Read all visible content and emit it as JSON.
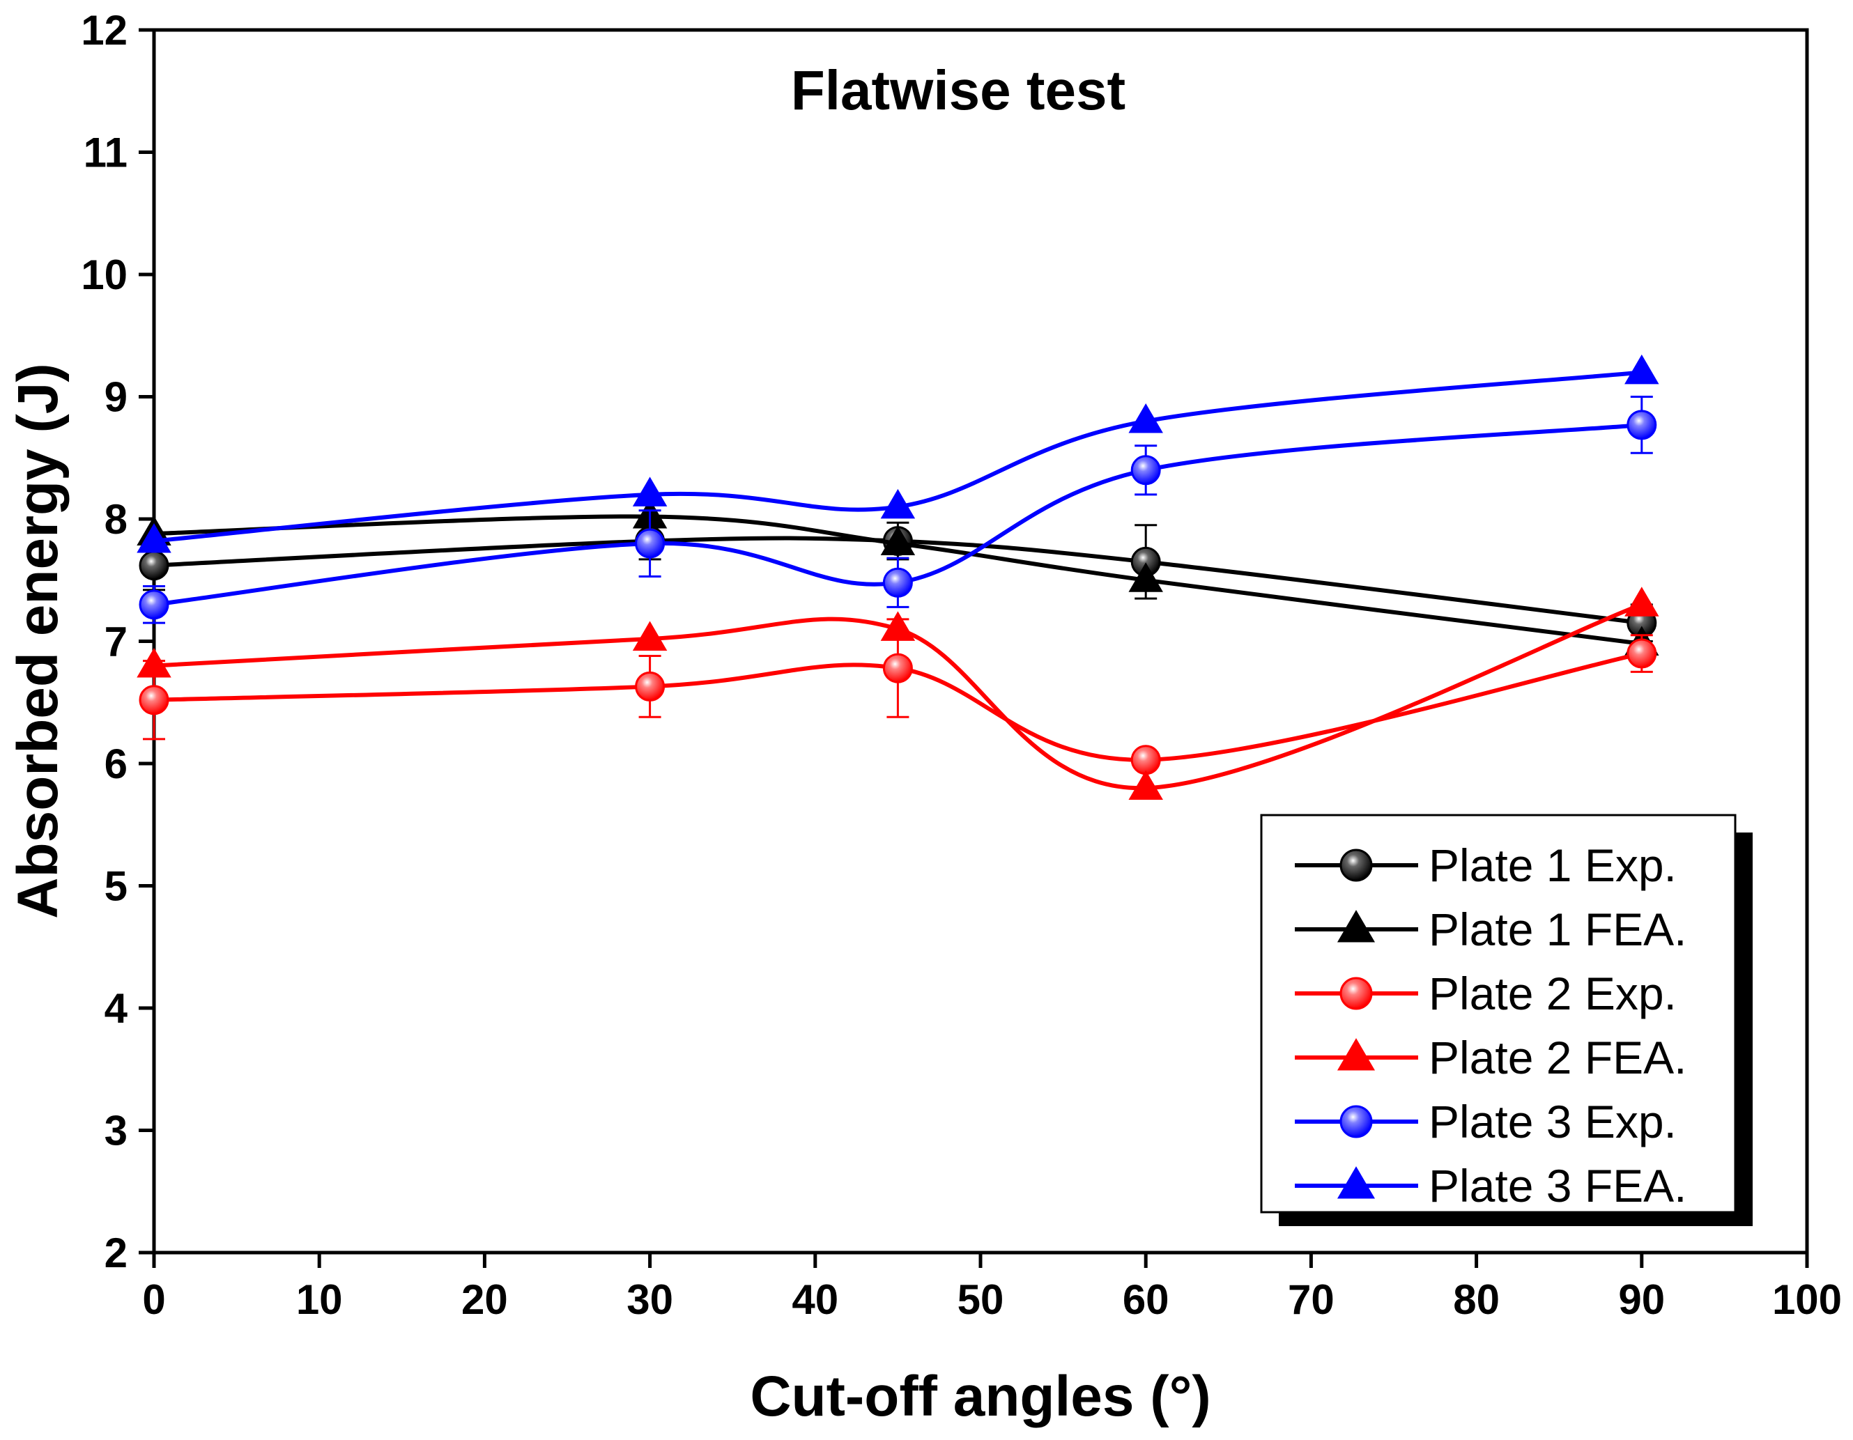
{
  "chart_data": {
    "type": "line",
    "title": "Flatwise test",
    "xlabel": "Cut-off angles (°)",
    "ylabel": "Absorbed energy (J)",
    "xlim": [
      0,
      100
    ],
    "ylim": [
      2,
      12
    ],
    "xticks": [
      0,
      10,
      20,
      30,
      40,
      50,
      60,
      70,
      80,
      90,
      100
    ],
    "yticks": [
      2,
      3,
      4,
      5,
      6,
      7,
      8,
      9,
      10,
      11,
      12
    ],
    "grid": false,
    "legend_position": "bottom-right",
    "x": [
      0,
      30,
      45,
      60,
      90
    ],
    "series": [
      {
        "name": "Plate 1 Exp.",
        "color": "#000000",
        "marker": "circle",
        "values": [
          7.62,
          7.82,
          7.82,
          7.65,
          7.15
        ],
        "errors": [
          0.2,
          0.15,
          0.15,
          0.3,
          0.15
        ]
      },
      {
        "name": "Plate 1 FEA.",
        "color": "#000000",
        "marker": "triangle",
        "values": [
          7.88,
          8.02,
          7.8,
          7.5,
          6.98
        ],
        "errors": null
      },
      {
        "name": "Plate 2 Exp.",
        "color": "#ff0000",
        "marker": "circle",
        "values": [
          6.52,
          6.63,
          6.78,
          6.03,
          6.9
        ],
        "errors": [
          0.32,
          0.25,
          0.4,
          0.05,
          0.15
        ]
      },
      {
        "name": "Plate 2 FEA.",
        "color": "#ff0000",
        "marker": "triangle",
        "values": [
          6.8,
          7.02,
          7.1,
          5.8,
          7.3
        ],
        "errors": null
      },
      {
        "name": "Plate 3 Exp.",
        "color": "#0000ff",
        "marker": "circle",
        "values": [
          7.3,
          7.8,
          7.48,
          8.4,
          8.77
        ],
        "errors": [
          0.15,
          0.27,
          0.2,
          0.2,
          0.23
        ]
      },
      {
        "name": "Plate 3 FEA.",
        "color": "#0000ff",
        "marker": "triangle",
        "values": [
          7.82,
          8.2,
          8.1,
          8.8,
          9.2
        ],
        "errors": null
      }
    ]
  }
}
